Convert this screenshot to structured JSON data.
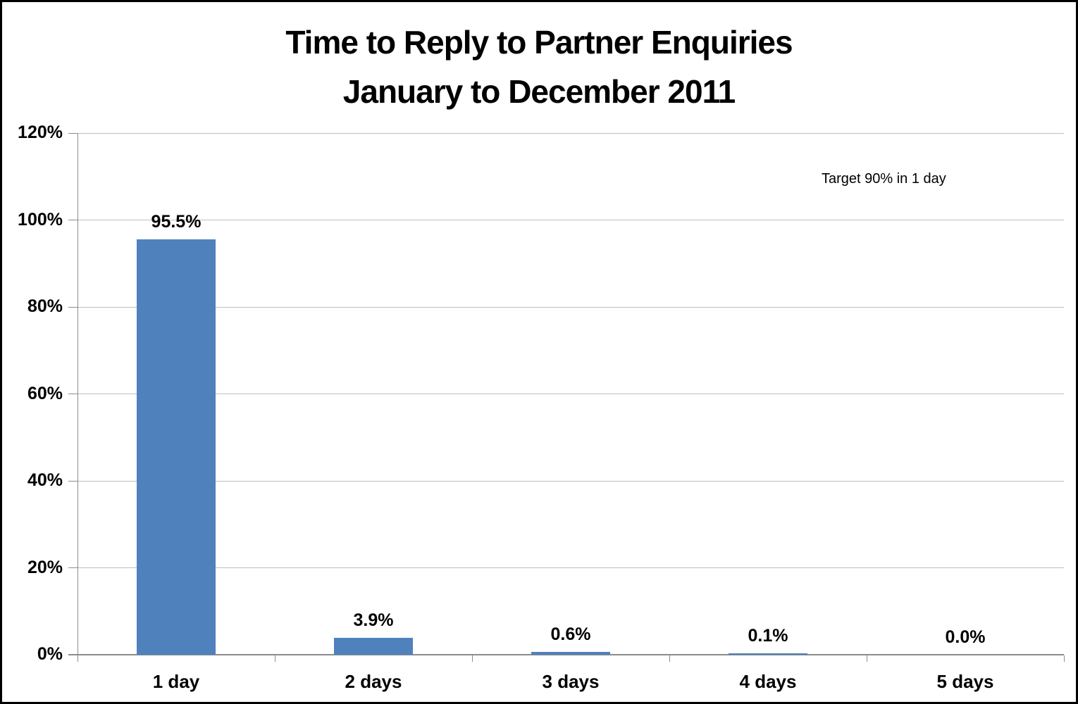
{
  "chart_data": {
    "type": "bar",
    "title_line1": "Time to Reply to Partner Enquiries",
    "title_line2": "January to December 2011",
    "categories": [
      "1 day",
      "2 days",
      "3 days",
      "4 days",
      "5 days"
    ],
    "values": [
      95.5,
      3.9,
      0.6,
      0.1,
      0.0
    ],
    "data_labels": [
      "95.5%",
      "3.9%",
      "0.6%",
      "0.1%",
      "0.0%"
    ],
    "annotation": "Target 90% in 1 day",
    "target_value": 90,
    "ylim": [
      0,
      120
    ],
    "ytick_step": 20,
    "ytick_labels": [
      "0%",
      "20%",
      "40%",
      "60%",
      "80%",
      "100%",
      "120%"
    ],
    "xlabel": "",
    "ylabel": "",
    "legend": "none",
    "grid": "horizontal",
    "colors": {
      "bar": "#4F81BD",
      "target_line": "#FF0000",
      "gridline": "#BFBFBF",
      "axis": "#8C8C8C",
      "text": "#000000",
      "background": "#FFFFFF",
      "frame_border": "#000000"
    }
  }
}
